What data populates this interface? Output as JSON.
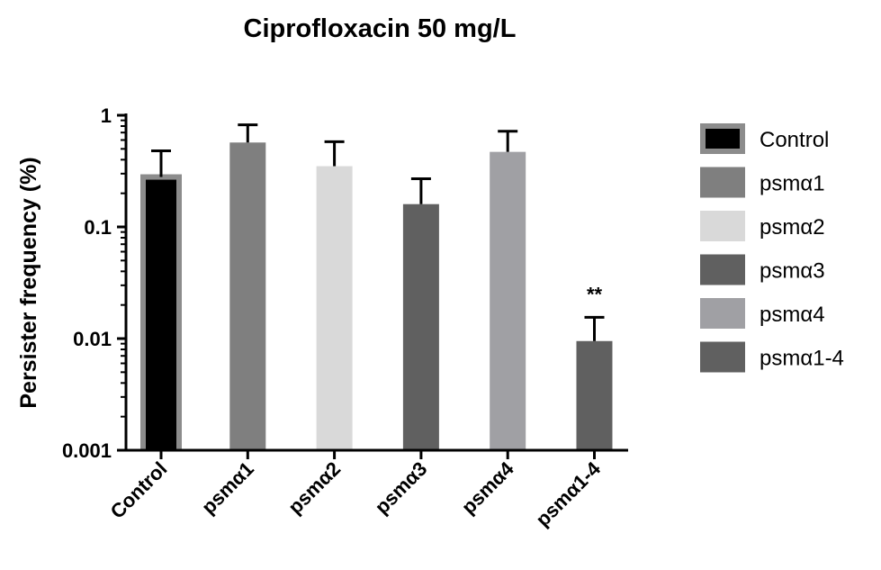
{
  "chart_data": {
    "type": "bar",
    "title": "Ciprofloxacin 50 mg/L",
    "ylabel": "Persister frequency (%)",
    "xlabel": "",
    "yscale": "log",
    "ylim": [
      0.001,
      1
    ],
    "yticks": [
      {
        "value": 0.001,
        "label": "0.001"
      },
      {
        "value": 0.01,
        "label": "0.01"
      },
      {
        "value": 0.1,
        "label": "0.1"
      },
      {
        "value": 1,
        "label": "1"
      }
    ],
    "categories": [
      "Control",
      "psmα1",
      "psmα2",
      "psmα3",
      "psmα4",
      "psmα1-4"
    ],
    "values": [
      0.28,
      0.57,
      0.35,
      0.16,
      0.47,
      0.0095
    ],
    "errors_upper": [
      0.48,
      0.82,
      0.58,
      0.27,
      0.72,
      0.0155
    ],
    "colors": [
      "#000000",
      "#7f7f7f",
      "#d9d9d9",
      "#606060",
      "#a0a0a4",
      "#606060"
    ],
    "outline_colors": [
      "#8c8c8c",
      null,
      null,
      null,
      null,
      null
    ],
    "annotations": [
      {
        "category": "psmα1-4",
        "text": "**"
      }
    ],
    "legend": {
      "position": "right",
      "entries": [
        "Control",
        "psmα1",
        "psmα2",
        "psmα3",
        "psmα4",
        "psmα1-4"
      ]
    },
    "grid": false
  }
}
